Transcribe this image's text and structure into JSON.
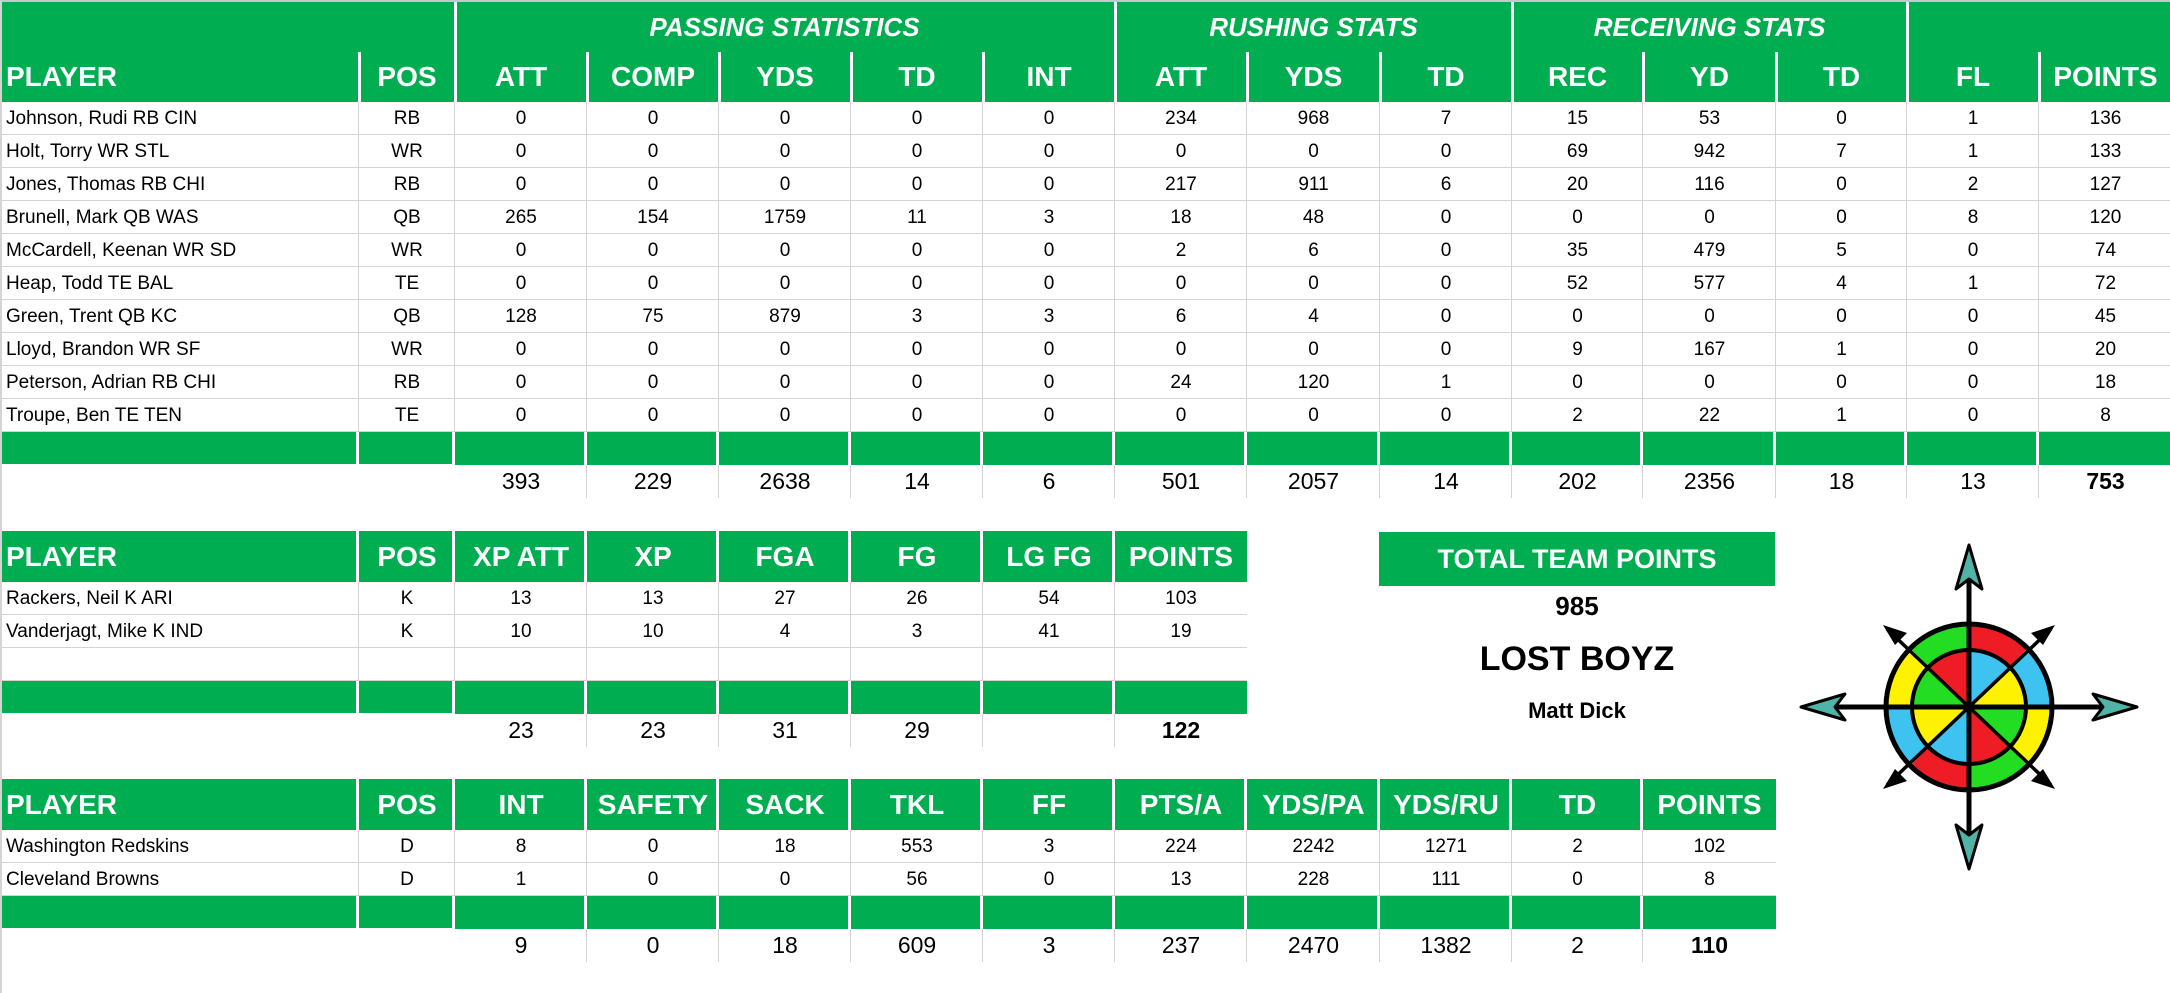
{
  "colors": {
    "header_green": "#00ad50",
    "grid_gray": "#d4d4d4",
    "text": "#000000",
    "header_text": "#ffffff"
  },
  "offense": {
    "group_headers": [
      {
        "label": "PASSING STATISTICS"
      },
      {
        "label": "RUSHING STATS"
      },
      {
        "label": "RECEIVING STATS"
      },
      {
        "label": ""
      }
    ],
    "columns": [
      "PLAYER",
      "POS",
      "ATT",
      "COMP",
      "YDS",
      "TD",
      "INT",
      "ATT",
      "YDS",
      "TD",
      "REC",
      "YD",
      "TD",
      "FL",
      "POINTS"
    ],
    "rows": [
      [
        "Johnson, Rudi RB CIN",
        "RB",
        "0",
        "0",
        "0",
        "0",
        "0",
        "234",
        "968",
        "7",
        "15",
        "53",
        "0",
        "1",
        "136"
      ],
      [
        "Holt, Torry WR STL",
        "WR",
        "0",
        "0",
        "0",
        "0",
        "0",
        "0",
        "0",
        "0",
        "69",
        "942",
        "7",
        "1",
        "133"
      ],
      [
        "Jones, Thomas RB CHI",
        "RB",
        "0",
        "0",
        "0",
        "0",
        "0",
        "217",
        "911",
        "6",
        "20",
        "116",
        "0",
        "2",
        "127"
      ],
      [
        "Brunell, Mark QB WAS",
        "QB",
        "265",
        "154",
        "1759",
        "11",
        "3",
        "18",
        "48",
        "0",
        "0",
        "0",
        "0",
        "8",
        "120"
      ],
      [
        "McCardell, Keenan WR SD",
        "WR",
        "0",
        "0",
        "0",
        "0",
        "0",
        "2",
        "6",
        "0",
        "35",
        "479",
        "5",
        "0",
        "74"
      ],
      [
        "Heap, Todd TE BAL",
        "TE",
        "0",
        "0",
        "0",
        "0",
        "0",
        "0",
        "0",
        "0",
        "52",
        "577",
        "4",
        "1",
        "72"
      ],
      [
        "Green, Trent QB KC",
        "QB",
        "128",
        "75",
        "879",
        "3",
        "3",
        "6",
        "4",
        "0",
        "0",
        "0",
        "0",
        "0",
        "45"
      ],
      [
        "Lloyd, Brandon WR SF",
        "WR",
        "0",
        "0",
        "0",
        "0",
        "0",
        "0",
        "0",
        "0",
        "9",
        "167",
        "1",
        "0",
        "20"
      ],
      [
        "Peterson, Adrian RB CHI",
        "RB",
        "0",
        "0",
        "0",
        "0",
        "0",
        "24",
        "120",
        "1",
        "0",
        "0",
        "0",
        "0",
        "18"
      ],
      [
        "Troupe, Ben TE TEN",
        "TE",
        "0",
        "0",
        "0",
        "0",
        "0",
        "0",
        "0",
        "0",
        "2",
        "22",
        "1",
        "0",
        "8"
      ]
    ],
    "totals": [
      "",
      "",
      "393",
      "229",
      "2638",
      "14",
      "6",
      "501",
      "2057",
      "14",
      "202",
      "2356",
      "18",
      "13",
      "753"
    ]
  },
  "kickers": {
    "columns": [
      "PLAYER",
      "POS",
      "XP ATT",
      "XP",
      "FGA",
      "FG",
      "LG FG",
      "POINTS"
    ],
    "rows": [
      [
        "Rackers, Neil K ARI",
        "K",
        "13",
        "13",
        "27",
        "26",
        "54",
        "103"
      ],
      [
        "Vanderjagt, Mike K IND",
        "K",
        "10",
        "10",
        "4",
        "3",
        "41",
        "19"
      ],
      [
        "",
        "",
        "",
        "",
        "",
        "",
        "",
        ""
      ]
    ],
    "totals": [
      "",
      "",
      "23",
      "23",
      "31",
      "29",
      "",
      "122"
    ]
  },
  "defense": {
    "columns": [
      "PLAYER",
      "POS",
      "INT",
      "SAFETY",
      "SACK",
      "TKL",
      "FF",
      "PTS/A",
      "YDS/PA",
      "YDS/RU",
      "TD",
      "POINTS"
    ],
    "rows": [
      [
        "Washington Redskins",
        "D",
        "8",
        "0",
        "18",
        "553",
        "3",
        "224",
        "2242",
        "1271",
        "2",
        "102"
      ],
      [
        "Cleveland Browns",
        "D",
        "1",
        "0",
        "0",
        "56",
        "0",
        "13",
        "228",
        "111",
        "0",
        "8"
      ]
    ],
    "totals": [
      "",
      "",
      "9",
      "0",
      "18",
      "609",
      "3",
      "237",
      "2470",
      "1382",
      "2",
      "110"
    ]
  },
  "summary": {
    "title": "TOTAL TEAM POINTS",
    "total_points": "985",
    "team_name": "LOST BOYZ",
    "owner": "Matt Dick"
  },
  "logo": {
    "icon": "compass-rose-icon"
  }
}
